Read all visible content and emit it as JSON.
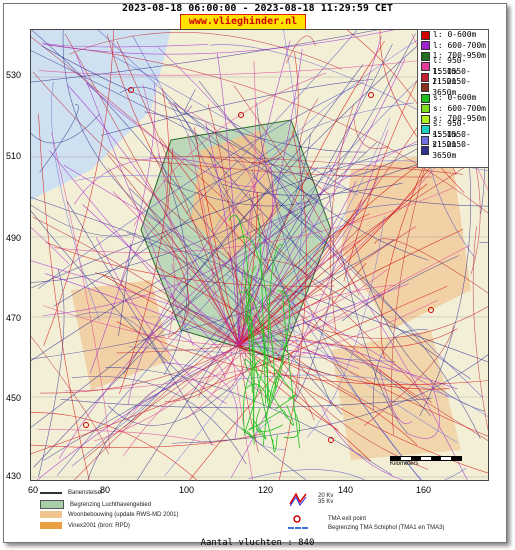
{
  "header": {
    "title": "2023-08-18 06:00:00 - 2023-08-18 11:29:59 CET",
    "site": "www.vlieghinder.nl"
  },
  "axes": {
    "y_ticks": [
      "530",
      "510",
      "490",
      "470",
      "450",
      "430"
    ],
    "x_ticks": [
      "60",
      "80",
      "100",
      "120",
      "140",
      "160"
    ]
  },
  "legend": [
    {
      "label": "l: 0-600m",
      "color": "#d40000"
    },
    {
      "label": "l: 600-700m",
      "color": "#a020d0"
    },
    {
      "label": "l: 700-950m",
      "color": "#207020"
    },
    {
      "label": "l: 950-1550m",
      "color": "#e03c96"
    },
    {
      "label": "l: 1550-2150m",
      "color": "#c02030"
    },
    {
      "label": "l: 2150-3650m",
      "color": "#8a3020"
    },
    {
      "label": "s: 0-600m",
      "color": "#20c020"
    },
    {
      "label": "s: 600-700m",
      "color": "#80e020"
    },
    {
      "label": "s: 700-950m",
      "color": "#b0f020"
    },
    {
      "label": "s: 950-1550m",
      "color": "#20d0c0"
    },
    {
      "label": "s: 1550-2150m",
      "color": "#7070e0"
    },
    {
      "label": "s: 2150-3650m",
      "color": "#303090"
    }
  ],
  "bottom_legend": {
    "banenstelsel": "Banenstelsel",
    "begrenzing": "Begrenzing Luchthavengebied",
    "woonbebouwing": "Woonbebouwing (update RWS-MD 2001)",
    "vinex": "Vinex2001 (bron: RPD)",
    "kv": "20 Kv\n35 Kv",
    "tma_exit": "TMA exit point",
    "tma_border": "Begrenzing TMA Schiphol  (TMA1 en TMA3)"
  },
  "scale_label": "Kilometers",
  "footer": {
    "count": "Aantal vluchten : 840"
  }
}
